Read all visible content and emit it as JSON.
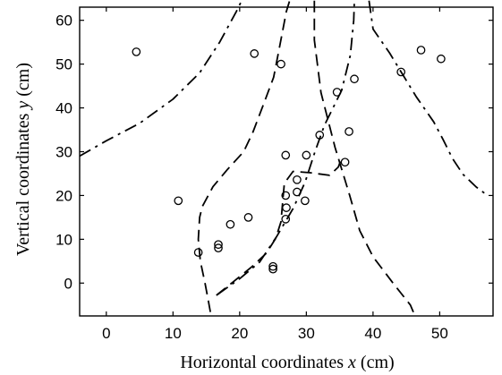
{
  "chart_data": {
    "type": "scatter",
    "title": "",
    "xlabel": {
      "prefix": "Horizontal coordinates ",
      "var": "x",
      "suffix": " (cm)"
    },
    "ylabel": {
      "prefix": "Vertical coordinates  ",
      "var": "y",
      "suffix": " (cm)"
    },
    "xlim": [
      -4,
      58
    ],
    "ylim": [
      -7.5,
      63
    ],
    "xticks": [
      0,
      10,
      20,
      30,
      40,
      50
    ],
    "yticks": [
      0,
      10,
      20,
      30,
      40,
      50,
      60
    ],
    "grid": false,
    "points": [
      [
        4.5,
        52.8
      ],
      [
        10.8,
        18.8
      ],
      [
        13.8,
        7.0
      ],
      [
        16.8,
        8.8
      ],
      [
        16.8,
        8.0
      ],
      [
        18.6,
        13.4
      ],
      [
        21.3,
        15.0
      ],
      [
        22.2,
        52.4
      ],
      [
        25.0,
        3.8
      ],
      [
        25.0,
        3.2
      ],
      [
        26.2,
        50.0
      ],
      [
        26.9,
        29.2
      ],
      [
        26.9,
        20.0
      ],
      [
        27.0,
        17.2
      ],
      [
        26.9,
        14.6
      ],
      [
        28.6,
        20.8
      ],
      [
        28.6,
        23.6
      ],
      [
        29.8,
        18.8
      ],
      [
        30.0,
        29.2
      ],
      [
        32.0,
        33.8
      ],
      [
        34.6,
        43.6
      ],
      [
        35.8,
        27.6
      ],
      [
        36.4,
        34.6
      ],
      [
        37.2,
        46.6
      ],
      [
        44.2,
        48.2
      ],
      [
        47.2,
        53.2
      ],
      [
        50.2,
        51.2
      ]
    ],
    "curves": [
      {
        "style": "dashdot",
        "points": [
          [
            -4,
            29
          ],
          [
            0,
            32.5
          ],
          [
            5,
            36.5
          ],
          [
            10,
            42
          ],
          [
            14,
            48
          ],
          [
            17,
            55
          ],
          [
            19.5,
            62
          ],
          [
            20.3,
            64.5
          ]
        ]
      },
      {
        "style": "dashed",
        "points": [
          [
            15.6,
            -6.6
          ],
          [
            15.3,
            -4
          ],
          [
            14.8,
            0
          ],
          [
            14.1,
            5
          ],
          [
            13.8,
            10
          ],
          [
            14.0,
            15
          ],
          [
            14.4,
            17.5
          ],
          [
            16,
            22
          ],
          [
            18.2,
            26
          ],
          [
            20.6,
            30
          ],
          [
            22,
            34.5
          ],
          [
            23.5,
            40.5
          ],
          [
            25.1,
            47
          ],
          [
            26,
            54
          ],
          [
            27,
            62
          ],
          [
            27.5,
            64.5
          ]
        ]
      },
      {
        "style": "dashed",
        "points": [
          [
            16.5,
            -2.8
          ],
          [
            18.8,
            0
          ],
          [
            21.8,
            3.7
          ],
          [
            24,
            6.8
          ],
          [
            25.4,
            10.2
          ],
          [
            26.2,
            14
          ],
          [
            26.5,
            19.5
          ],
          [
            26.7,
            22.8
          ],
          [
            28,
            25.5
          ],
          [
            30.6,
            25.2
          ],
          [
            33.5,
            24.6
          ],
          [
            34.8,
            26.5
          ],
          [
            35.4,
            29
          ]
        ]
      },
      {
        "style": "dashdot",
        "points": [
          [
            16.7,
            -2.6
          ],
          [
            20,
            1
          ],
          [
            23,
            4.8
          ],
          [
            25.5,
            10.5
          ],
          [
            28,
            17
          ],
          [
            29.8,
            23
          ],
          [
            31.3,
            30
          ],
          [
            32.7,
            36
          ],
          [
            35.3,
            44
          ],
          [
            36.6,
            52
          ],
          [
            37.1,
            60
          ],
          [
            37.2,
            64.5
          ]
        ]
      },
      {
        "style": "dashed",
        "points": [
          [
            31.2,
            64.5
          ],
          [
            31.2,
            55.5
          ],
          [
            32.2,
            43.5
          ],
          [
            34.3,
            31
          ],
          [
            36.5,
            20
          ],
          [
            38,
            12
          ],
          [
            40,
            6
          ],
          [
            43,
            0
          ],
          [
            45.6,
            -5
          ],
          [
            46.3,
            -7.5
          ]
        ]
      },
      {
        "style": "dashdot",
        "points": [
          [
            39.4,
            64.5
          ],
          [
            40,
            58
          ],
          [
            42.5,
            52.5
          ],
          [
            44.5,
            47.5
          ],
          [
            46.5,
            42.5
          ],
          [
            49.1,
            36.8
          ],
          [
            50.5,
            32.8
          ],
          [
            51.9,
            28.5
          ],
          [
            53.5,
            24.8
          ],
          [
            55.5,
            21.9
          ],
          [
            57,
            20.2
          ]
        ]
      }
    ]
  }
}
